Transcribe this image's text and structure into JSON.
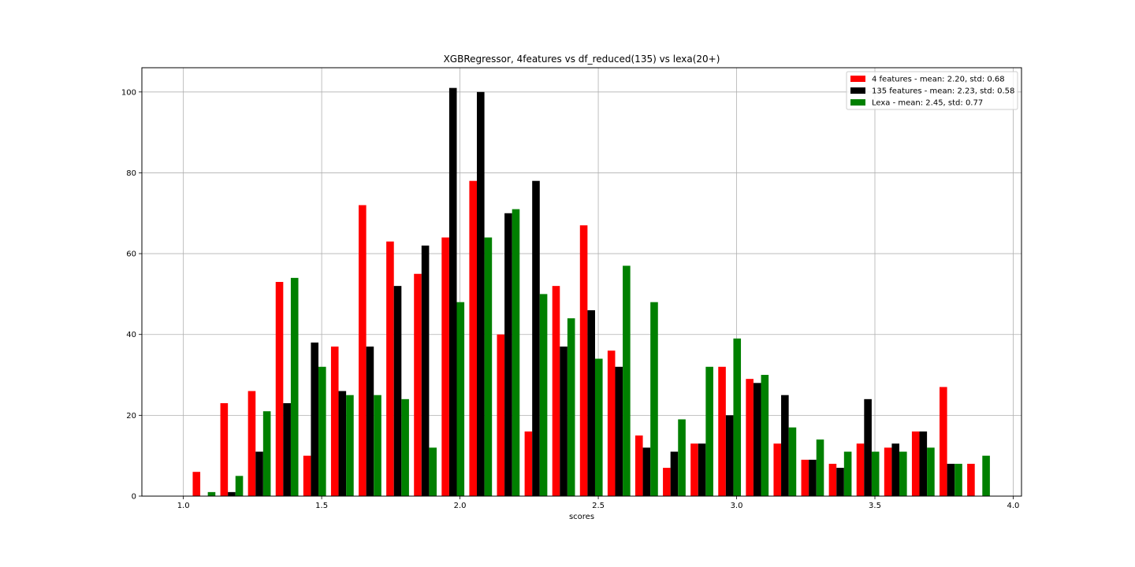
{
  "chart_data": {
    "type": "bar",
    "title": "XGBRegressor, 4features vs df_reduced(135) vs lexa(20+)",
    "xlabel": "scores",
    "ylabel": "",
    "xlim": [
      0.85,
      4.03
    ],
    "ylim": [
      0,
      106
    ],
    "x_ticks": [
      "1.0",
      "1.5",
      "2.0",
      "2.5",
      "3.0",
      "3.5",
      "4.0"
    ],
    "y_ticks": [
      "0",
      "20",
      "40",
      "60",
      "80",
      "100"
    ],
    "grid": true,
    "legend_position": "top-right",
    "bin_centers": [
      1.0747,
      1.1747,
      1.2747,
      1.3747,
      1.4747,
      1.5747,
      1.6747,
      1.7747,
      1.8747,
      1.9747,
      2.0747,
      2.1747,
      2.2747,
      2.3747,
      2.4747,
      2.5747,
      2.6747,
      2.7747,
      2.8747,
      2.9747,
      3.0747,
      3.1747,
      3.2747,
      3.3747,
      3.4747,
      3.5747,
      3.6747,
      3.7747,
      3.8747
    ],
    "series": [
      {
        "name": "4 features - mean: 2.20, std: 0.68",
        "color": "#ff0000",
        "values": [
          6,
          23,
          26,
          53,
          10,
          37,
          72,
          63,
          55,
          64,
          78,
          40,
          16,
          52,
          67,
          36,
          15,
          7,
          13,
          32,
          29,
          13,
          9,
          8,
          13,
          12,
          16,
          27,
          8
        ]
      },
      {
        "name": "135 features - mean: 2.23, std: 0.58",
        "color": "#000000",
        "values": [
          0,
          1,
          11,
          23,
          38,
          26,
          37,
          52,
          62,
          101,
          100,
          70,
          78,
          37,
          46,
          32,
          12,
          11,
          13,
          20,
          28,
          25,
          9,
          7,
          24,
          13,
          16,
          8,
          0
        ]
      },
      {
        "name": "Lexa - mean: 2.45, std: 0.77",
        "color": "#008000",
        "values": [
          1,
          5,
          21,
          54,
          32,
          25,
          25,
          24,
          12,
          48,
          64,
          71,
          50,
          44,
          34,
          57,
          48,
          19,
          32,
          39,
          30,
          17,
          14,
          11,
          11,
          11,
          12,
          8,
          10
        ]
      }
    ]
  }
}
